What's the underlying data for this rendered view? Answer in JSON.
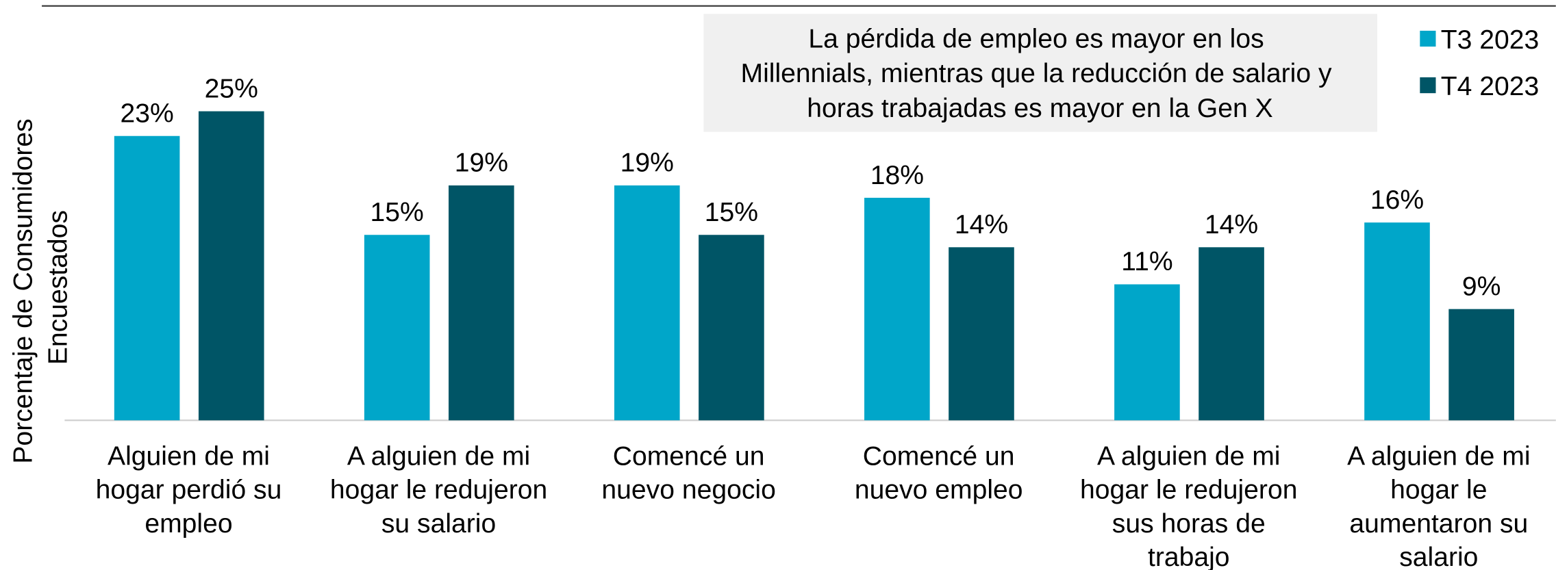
{
  "chart_data": {
    "type": "bar",
    "y_label": [
      "Porcentaje de Consumidores",
      "Encuestados"
    ],
    "annotation": [
      "La pérdida de empleo es mayor en los",
      "Millennials, mientras que la reducción de salario y",
      "horas trabajadas es mayor en la Gen X"
    ],
    "categories": [
      [
        "Alguien de mi",
        "hogar perdió su",
        "empleo"
      ],
      [
        "A alguien de mi",
        "hogar le redujeron",
        "su salario"
      ],
      [
        "Comencé un",
        "nuevo negocio"
      ],
      [
        "Comencé un",
        "nuevo empleo"
      ],
      [
        "A alguien de mi",
        "hogar le redujeron",
        "sus horas de",
        "trabajo"
      ],
      [
        "A alguien de mi",
        "hogar le",
        "aumentaron su",
        "salario"
      ]
    ],
    "series": [
      {
        "name": "T3 2023",
        "color": "#00a6c9",
        "values": [
          23,
          15,
          19,
          18,
          11,
          16
        ],
        "value_labels": [
          "23%",
          "15%",
          "19%",
          "18%",
          "11%",
          "16%"
        ]
      },
      {
        "name": "T4 2023",
        "color": "#005566",
        "values": [
          25,
          19,
          15,
          14,
          14,
          9
        ],
        "value_labels": [
          "25%",
          "19%",
          "15%",
          "14%",
          "14%",
          "9%"
        ]
      }
    ],
    "ylim": [
      0,
      34
    ],
    "legend": "top-right"
  }
}
